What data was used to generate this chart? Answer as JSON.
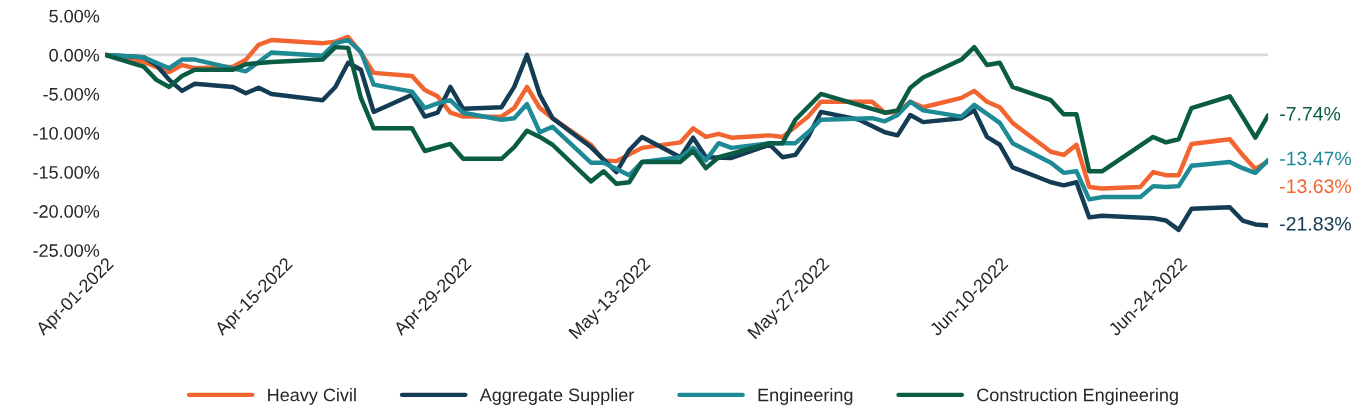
{
  "chart_data": {
    "type": "line",
    "x": [
      "2022-04-01",
      "2022-04-04",
      "2022-04-06",
      "2022-04-07",
      "2022-04-08",
      "2022-04-11",
      "2022-04-12",
      "2022-04-13",
      "2022-04-14",
      "2022-04-18",
      "2022-04-19",
      "2022-04-20",
      "2022-04-21",
      "2022-04-22",
      "2022-04-25",
      "2022-04-26",
      "2022-04-27",
      "2022-04-28",
      "2022-04-29",
      "2022-05-02",
      "2022-05-03",
      "2022-05-04",
      "2022-05-05",
      "2022-05-06",
      "2022-05-09",
      "2022-05-10",
      "2022-05-11",
      "2022-05-13",
      "2022-05-16",
      "2022-05-17",
      "2022-05-18",
      "2022-05-19",
      "2022-05-20",
      "2022-05-23",
      "2022-05-24",
      "2022-05-26",
      "2022-05-27",
      "2022-05-31",
      "2022-06-01",
      "2022-06-02",
      "2022-06-03",
      "2022-06-04",
      "2022-06-07",
      "2022-06-08",
      "2022-06-09",
      "2022-06-10",
      "2022-06-11",
      "2022-06-14",
      "2022-06-15",
      "2022-06-16",
      "2022-06-17",
      "2022-06-18",
      "2022-06-21",
      "2022-06-22",
      "2022-06-23",
      "2022-06-24",
      "2022-06-25",
      "2022-06-28",
      "2022-06-29",
      "2022-06-30",
      "2022-07-01"
    ],
    "series": [
      {
        "name": "Heavy Civil",
        "color": "#f26430",
        "values": [
          0,
          -0.9,
          -2.2,
          -1.3,
          -1.7,
          -1.5,
          -0.6,
          1.3,
          1.9,
          1.5,
          1.7,
          2.3,
          0.3,
          -2.3,
          -2.7,
          -4.5,
          -5.3,
          -7.4,
          -7.9,
          -7.9,
          -6.8,
          -4.1,
          -6.8,
          -8.1,
          -11.5,
          -13.5,
          -13.6,
          -11.9,
          -11.2,
          -9.4,
          -10.5,
          -10.1,
          -10.6,
          -10.3,
          -10.5,
          -7.9,
          -6.0,
          -6.0,
          -7.4,
          -7.3,
          -6.0,
          -6.7,
          -5.5,
          -4.6,
          -6.0,
          -6.7,
          -8.7,
          -12.4,
          -12.8,
          -11.5,
          -16.9,
          -17.1,
          -16.9,
          -15.0,
          -15.4,
          -15.4,
          -11.4,
          -10.8,
          -12.8,
          -14.6,
          -13.63
        ],
        "value_labels": [
          null,
          null,
          null,
          null,
          null,
          null,
          null,
          null,
          null,
          null,
          null,
          null,
          null,
          null,
          null,
          null,
          null,
          null,
          null,
          null,
          null,
          null,
          null,
          null,
          null,
          null,
          null,
          null,
          null,
          null,
          null,
          null,
          null,
          null,
          null,
          null,
          null,
          null,
          null,
          null,
          null,
          null,
          null,
          null,
          null,
          null,
          null,
          null,
          null,
          null,
          null,
          null,
          null,
          null,
          null,
          null,
          null,
          null,
          null,
          null,
          "-13.63%"
        ]
      },
      {
        "name": "Aggregate Supplier",
        "color": "#143d55",
        "x": [
          "2022-04-01",
          "2022-04-04",
          "2022-04-05",
          "2022-04-06",
          "2022-04-07",
          "2022-04-08",
          "2022-04-11",
          "2022-04-12",
          "2022-04-13",
          "2022-04-14",
          "2022-04-18",
          "2022-04-19",
          "2022-04-20",
          "2022-04-21",
          "2022-04-22",
          "2022-04-25",
          "2022-04-26",
          "2022-04-27",
          "2022-04-28",
          "2022-04-29",
          "2022-05-02",
          "2022-05-03",
          "2022-05-04",
          "2022-05-05",
          "2022-05-06",
          "2022-05-09",
          "2022-05-11",
          "2022-05-12",
          "2022-05-13",
          "2022-05-16",
          "2022-05-17",
          "2022-05-18",
          "2022-05-20",
          "2022-05-23",
          "2022-05-24",
          "2022-05-25",
          "2022-05-26",
          "2022-05-27",
          "2022-05-30",
          "2022-06-01",
          "2022-06-02",
          "2022-06-03",
          "2022-06-04",
          "2022-06-07",
          "2022-06-08",
          "2022-06-09",
          "2022-06-10",
          "2022-06-11",
          "2022-06-14",
          "2022-06-15",
          "2022-06-16",
          "2022-06-17",
          "2022-06-18",
          "2022-06-22",
          "2022-06-23",
          "2022-06-24",
          "2022-06-25",
          "2022-06-28",
          "2022-06-29",
          "2022-06-30",
          "2022-07-01"
        ],
        "values": [
          0,
          -0.3,
          -1.3,
          -3.2,
          -4.6,
          -3.7,
          -4.1,
          -4.9,
          -4.2,
          -5.0,
          -5.8,
          -4.1,
          -1.0,
          -1.9,
          -7.3,
          -5.1,
          -7.9,
          -7.4,
          -4.1,
          -6.9,
          -6.7,
          -4.1,
          0.0,
          -5.1,
          -8.1,
          -11.8,
          -15.0,
          -12.2,
          -10.5,
          -13.1,
          -10.6,
          -13.1,
          -13.2,
          -11.5,
          -13.1,
          -12.8,
          -10.5,
          -7.3,
          -8.3,
          -9.9,
          -10.3,
          -7.7,
          -8.6,
          -8.1,
          -7.1,
          -10.5,
          -11.5,
          -14.4,
          -16.3,
          -16.7,
          -16.3,
          -20.8,
          -20.6,
          -20.9,
          -21.2,
          -22.4,
          -19.7,
          -19.5,
          -21.2,
          -21.7,
          -21.83
        ],
        "value_labels": [
          null,
          null,
          null,
          null,
          null,
          null,
          null,
          null,
          null,
          null,
          null,
          null,
          null,
          null,
          null,
          null,
          null,
          null,
          null,
          null,
          null,
          null,
          null,
          null,
          null,
          null,
          null,
          null,
          null,
          null,
          null,
          null,
          null,
          null,
          null,
          null,
          null,
          null,
          null,
          null,
          null,
          null,
          null,
          null,
          null,
          null,
          null,
          null,
          null,
          null,
          null,
          null,
          null,
          null,
          null,
          null,
          null,
          null,
          null,
          null,
          "-21.83%"
        ]
      },
      {
        "name": "Engineering",
        "color": "#1e8a96",
        "x": [
          "2022-04-01",
          "2022-04-04",
          "2022-04-06",
          "2022-04-07",
          "2022-04-08",
          "2022-04-12",
          "2022-04-13",
          "2022-04-14",
          "2022-04-18",
          "2022-04-19",
          "2022-04-20",
          "2022-04-21",
          "2022-04-22",
          "2022-04-25",
          "2022-04-26",
          "2022-04-27",
          "2022-04-28",
          "2022-04-29",
          "2022-05-02",
          "2022-05-03",
          "2022-05-04",
          "2022-05-05",
          "2022-05-06",
          "2022-05-09",
          "2022-05-10",
          "2022-05-12",
          "2022-05-13",
          "2022-05-16",
          "2022-05-17",
          "2022-05-18",
          "2022-05-19",
          "2022-05-20",
          "2022-05-23",
          "2022-05-25",
          "2022-05-26",
          "2022-05-27",
          "2022-05-31",
          "2022-06-01",
          "2022-06-02",
          "2022-06-03",
          "2022-06-04",
          "2022-06-07",
          "2022-06-08",
          "2022-06-10",
          "2022-06-11",
          "2022-06-14",
          "2022-06-15",
          "2022-06-16",
          "2022-06-17",
          "2022-06-18",
          "2022-06-21",
          "2022-06-22",
          "2022-06-23",
          "2022-06-24",
          "2022-06-25",
          "2022-06-28",
          "2022-06-29",
          "2022-06-30",
          "2022-07-01"
        ],
        "values": [
          0,
          -0.3,
          -1.7,
          -0.6,
          -0.6,
          -2.1,
          -0.9,
          0.3,
          -0.1,
          1.5,
          1.9,
          0.4,
          -3.8,
          -4.7,
          -6.8,
          -6.2,
          -5.8,
          -7.4,
          -8.3,
          -8.1,
          -6.3,
          -9.9,
          -9.2,
          -13.8,
          -13.8,
          -15.4,
          -13.7,
          -13.1,
          -11.9,
          -13.5,
          -11.3,
          -11.9,
          -11.3,
          -11.3,
          -9.9,
          -8.3,
          -8.1,
          -8.5,
          -7.7,
          -6.0,
          -7.1,
          -7.9,
          -6.4,
          -8.7,
          -11.3,
          -13.8,
          -15.1,
          -14.9,
          -18.5,
          -18.2,
          -18.2,
          -16.8,
          -16.9,
          -16.8,
          -14.2,
          -13.7,
          -14.5,
          -15.1,
          -13.47
        ],
        "value_labels": [
          null,
          null,
          null,
          null,
          null,
          null,
          null,
          null,
          null,
          null,
          null,
          null,
          null,
          null,
          null,
          null,
          null,
          null,
          null,
          null,
          null,
          null,
          null,
          null,
          null,
          null,
          null,
          null,
          null,
          null,
          null,
          null,
          null,
          null,
          null,
          null,
          null,
          null,
          null,
          null,
          null,
          null,
          null,
          null,
          null,
          null,
          null,
          null,
          null,
          null,
          null,
          null,
          null,
          null,
          null,
          null,
          null,
          null,
          "-13.47%"
        ]
      },
      {
        "name": "Construction Engineering",
        "color": "#0b5c45",
        "x": [
          "2022-04-01",
          "2022-04-04",
          "2022-04-05",
          "2022-04-06",
          "2022-04-07",
          "2022-04-08",
          "2022-04-11",
          "2022-04-12",
          "2022-04-14",
          "2022-04-18",
          "2022-04-19",
          "2022-04-20",
          "2022-04-21",
          "2022-04-22",
          "2022-04-25",
          "2022-04-26",
          "2022-04-28",
          "2022-04-29",
          "2022-05-02",
          "2022-05-03",
          "2022-05-04",
          "2022-05-05",
          "2022-05-06",
          "2022-05-09",
          "2022-05-10",
          "2022-05-11",
          "2022-05-12",
          "2022-05-13",
          "2022-05-16",
          "2022-05-17",
          "2022-05-18",
          "2022-05-19",
          "2022-05-23",
          "2022-05-24",
          "2022-05-25",
          "2022-05-27",
          "2022-06-01",
          "2022-06-02",
          "2022-06-03",
          "2022-06-04",
          "2022-06-07",
          "2022-06-08",
          "2022-06-09",
          "2022-06-10",
          "2022-06-11",
          "2022-06-14",
          "2022-06-15",
          "2022-06-16",
          "2022-06-17",
          "2022-06-18",
          "2022-06-22",
          "2022-06-23",
          "2022-06-24",
          "2022-06-25",
          "2022-06-28",
          "2022-06-29",
          "2022-06-30",
          "2022-07-01"
        ],
        "values": [
          0,
          -1.5,
          -3.2,
          -4.1,
          -2.7,
          -1.9,
          -1.9,
          -1.2,
          -0.9,
          -0.6,
          1.0,
          0.9,
          -5.5,
          -9.4,
          -9.4,
          -12.3,
          -11.4,
          -13.3,
          -13.3,
          -11.8,
          -9.7,
          -10.5,
          -11.5,
          -16.2,
          -14.9,
          -16.5,
          -16.3,
          -13.7,
          -13.7,
          -12.3,
          -14.5,
          -13.1,
          -11.3,
          -11.3,
          -8.3,
          -5.0,
          -7.4,
          -7.1,
          -4.2,
          -2.9,
          -0.6,
          1.0,
          -1.3,
          -1.0,
          -4.1,
          -5.8,
          -7.6,
          -7.6,
          -14.9,
          -14.9,
          -10.5,
          -11.2,
          -10.8,
          -6.8,
          -5.3,
          -7.9,
          -10.6,
          -7.74
        ],
        "value_labels": [
          null,
          null,
          null,
          null,
          null,
          null,
          null,
          null,
          null,
          null,
          null,
          null,
          null,
          null,
          null,
          null,
          null,
          null,
          null,
          null,
          null,
          null,
          null,
          null,
          null,
          null,
          null,
          null,
          null,
          null,
          null,
          null,
          null,
          null,
          null,
          null,
          null,
          null,
          null,
          null,
          null,
          null,
          null,
          null,
          null,
          null,
          null,
          null,
          null,
          null,
          null,
          null,
          null,
          null,
          null,
          null,
          null,
          "-7.74%"
        ]
      }
    ],
    "xlim": [
      "2022-04-01",
      "2022-07-01"
    ],
    "xticks": [
      {
        "value": "2022-04-01",
        "label": "Apr-01-2022"
      },
      {
        "value": "2022-04-15",
        "label": "Apr-15-2022"
      },
      {
        "value": "2022-04-29",
        "label": "Apr-29-2022"
      },
      {
        "value": "2022-05-13",
        "label": "May-13-2022"
      },
      {
        "value": "2022-05-27",
        "label": "May-27-2022"
      },
      {
        "value": "2022-06-10",
        "label": "Jun-10-2022"
      },
      {
        "value": "2022-06-24",
        "label": "Jun-24-2022"
      }
    ],
    "ylim": [
      -25,
      5
    ],
    "yticks": [
      {
        "value": 5,
        "label": "5.00%"
      },
      {
        "value": 0,
        "label": "0.00%"
      },
      {
        "value": -5,
        "label": "-5.00%"
      },
      {
        "value": -10,
        "label": "-10.00%"
      },
      {
        "value": -15,
        "label": "-15.00%"
      },
      {
        "value": -20,
        "label": "-20.00%"
      },
      {
        "value": -25,
        "label": "-25.00%"
      }
    ],
    "ref_lines": [
      {
        "axis": "y",
        "value": 0,
        "color": "#d9d9d9"
      }
    ],
    "grid": false,
    "legend": "bottom",
    "line_style": "solid",
    "marker": "none"
  }
}
